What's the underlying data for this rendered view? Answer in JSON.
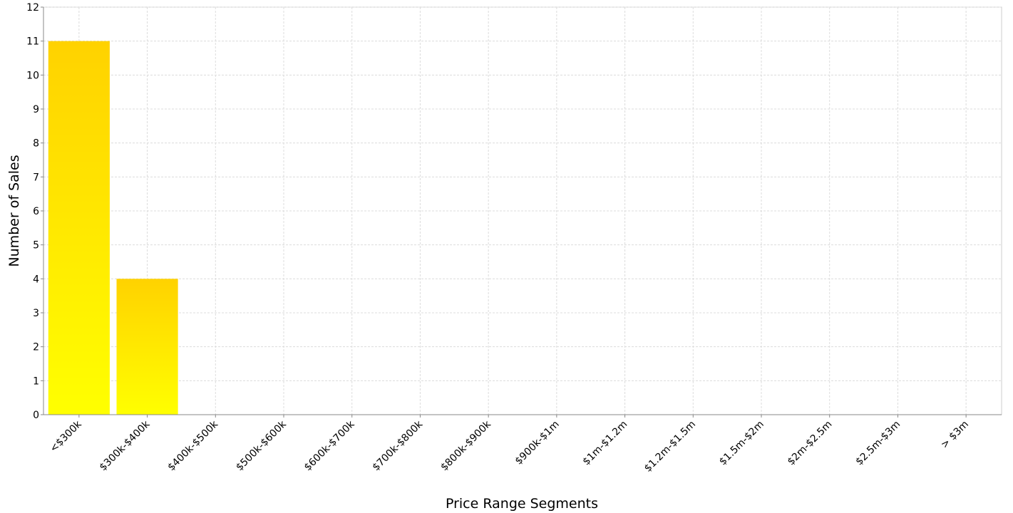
{
  "chart_data": {
    "type": "bar",
    "title": "",
    "xlabel": "Price Range Segments",
    "ylabel": "Number of Sales",
    "categories": [
      "<$300k",
      "$300k-$400k",
      "$400k-$500k",
      "$500k-$600k",
      "$600k-$700k",
      "$700k-$800k",
      "$800k-$900k",
      "$900k-$1m",
      "$1m-$1.2m",
      "$1.2m-$1.5m",
      "$1.5m-$2m",
      "$2m-$2.5m",
      "$2.5m-$3m",
      "> $3m"
    ],
    "values": [
      11,
      4,
      0,
      0,
      0,
      0,
      0,
      0,
      0,
      0,
      0,
      0,
      0,
      0
    ],
    "yticks": [
      0,
      1,
      2,
      3,
      4,
      5,
      6,
      7,
      8,
      9,
      10,
      11,
      12
    ],
    "ylim": [
      0,
      12
    ],
    "grid": true,
    "legend": "none",
    "colors": {
      "bar_top": "#ffd200",
      "bar_bottom": "#ffff00",
      "grid": "#dcdcdc",
      "axis": "#888888"
    }
  }
}
